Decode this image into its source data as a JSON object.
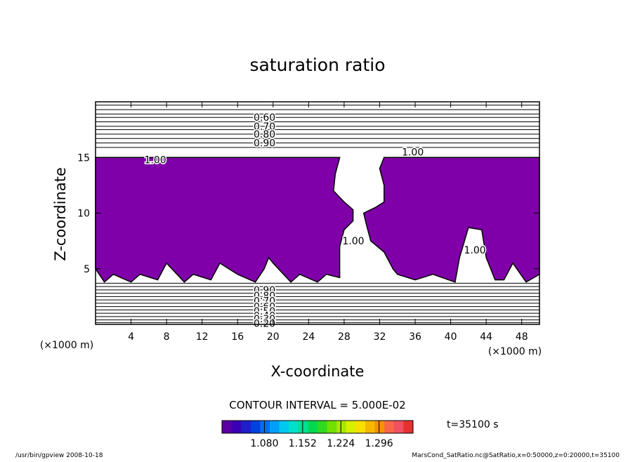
{
  "chart_data": {
    "type": "contour",
    "title": "saturation ratio",
    "xlabel": "X-coordinate",
    "ylabel": "Z-coordinate",
    "x_unit_left": "(×1000 m)",
    "x_unit_right": "(×1000 m)",
    "xlim": [
      0,
      50
    ],
    "ylim": [
      0,
      20
    ],
    "xticks": [
      4,
      8,
      12,
      16,
      20,
      24,
      28,
      32,
      36,
      40,
      44,
      48
    ],
    "yticks": [
      5,
      10,
      15
    ],
    "region": {
      "color": "#7f00a8",
      "x": [
        0,
        27.5,
        27,
        26.8,
        28,
        29,
        29,
        28,
        27.5,
        27.5,
        26,
        25,
        23,
        22,
        20,
        19.5,
        19,
        18,
        16,
        14,
        13,
        11,
        10,
        8,
        7,
        5,
        4,
        2,
        1,
        0,
        null,
        32.5,
        50,
        50,
        48.5,
        47,
        46,
        45,
        44,
        43.5,
        42,
        41,
        40.5,
        38,
        36,
        34,
        33.5,
        32.5,
        31,
        30.5,
        30.2,
        31.5,
        32.5,
        32.5,
        32
      ],
      "z": [
        15,
        15,
        13.5,
        12,
        11,
        10.3,
        9.3,
        8.5,
        7,
        4.2,
        4.5,
        3.8,
        4.5,
        3.8,
        5.5,
        6,
        5,
        3.8,
        4.5,
        5.5,
        4,
        4.5,
        3.8,
        5.5,
        4,
        4.5,
        3.8,
        4.5,
        3.8,
        5,
        null,
        15,
        15,
        4.5,
        3.8,
        5.5,
        4,
        4,
        6,
        8.5,
        8.7,
        6,
        3.8,
        4.5,
        4,
        4.5,
        5,
        6.5,
        7.5,
        9,
        10,
        10.5,
        11,
        12.5,
        14
      ]
    },
    "contour_lines": [
      19.7,
      19.3,
      18.9,
      18.6,
      18.2,
      17.8,
      17.5,
      17.1,
      16.7,
      16.3,
      15.9,
      3.7,
      3.4,
      3.1,
      2.8,
      2.5,
      2.2,
      1.9,
      1.6,
      1.3,
      1.0,
      0.7,
      0.4,
      0.15
    ],
    "contour_labels": [
      {
        "label": "0.60",
        "x": 17.8,
        "z": 18.6
      },
      {
        "label": "0.70",
        "x": 17.8,
        "z": 17.8
      },
      {
        "label": "0.80",
        "x": 17.8,
        "z": 17.1
      },
      {
        "label": "0.90",
        "x": 17.8,
        "z": 16.3
      },
      {
        "label": "1.00",
        "x": 5.5,
        "z": 14.8
      },
      {
        "label": "1.00",
        "x": 34.5,
        "z": 15.5
      },
      {
        "label": "1.00",
        "x": 27.8,
        "z": 7.5
      },
      {
        "label": "1.00",
        "x": 41.5,
        "z": 6.7
      },
      {
        "label": "0.90",
        "x": 17.8,
        "z": 3.1
      },
      {
        "label": "0.80",
        "x": 17.8,
        "z": 2.6
      },
      {
        "label": "0.70",
        "x": 17.8,
        "z": 2.1
      },
      {
        "label": "0.60",
        "x": 17.8,
        "z": 1.6
      },
      {
        "label": "0.50",
        "x": 17.8,
        "z": 1.2
      },
      {
        "label": "0.40",
        "x": 17.8,
        "z": 0.8
      },
      {
        "label": "0.30",
        "x": 17.8,
        "z": 0.5
      },
      {
        "label": "0.20",
        "x": 17.8,
        "z": 0.1
      }
    ],
    "contour_interval_text": "CONTOUR INTERVAL = 5.000E-02",
    "colorbar": {
      "lim": [
        1.0,
        1.36
      ],
      "colors": [
        "#5a00a0",
        "#3c00b4",
        "#1e1ec8",
        "#0040e0",
        "#0070f0",
        "#00a0f8",
        "#00c8f0",
        "#00e0c8",
        "#00e090",
        "#00d850",
        "#30d820",
        "#70e000",
        "#a8e800",
        "#d8f000",
        "#f8e000",
        "#f8b800",
        "#f89000",
        "#f86848",
        "#f05060",
        "#e83030"
      ],
      "ticks": [
        {
          "value": 1.08,
          "label": "1.080"
        },
        {
          "value": 1.152,
          "label": "1.152"
        },
        {
          "value": 1.224,
          "label": "1.224"
        },
        {
          "value": 1.296,
          "label": "1.296"
        }
      ]
    },
    "time_label": "t=35100 s",
    "footer_left": "/usr/bin/gpview   2008-10-18",
    "footer_right": "MarsCond_SatRatio.nc@SatRatio,x=0:50000,z=0:20000,t=35100"
  }
}
